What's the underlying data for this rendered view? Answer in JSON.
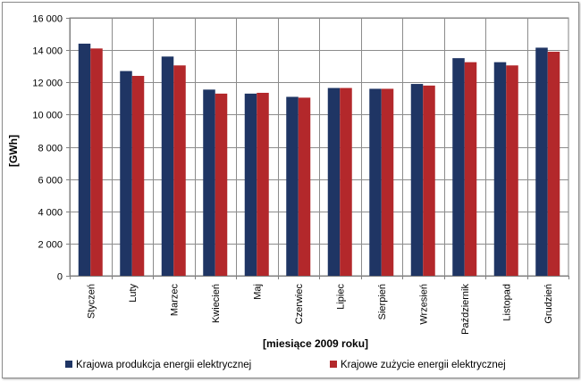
{
  "chart_data": {
    "type": "bar",
    "ylabel": "[GWh]",
    "xlabel": "[miesiące 2009  roku]",
    "ylim": [
      0,
      16000
    ],
    "yticks": [
      0,
      2000,
      4000,
      6000,
      8000,
      10000,
      12000,
      14000,
      16000
    ],
    "ytick_labels": [
      "0",
      "2 000",
      "4 000",
      "6 000",
      "8 000",
      "10 000",
      "12 000",
      "14 000",
      "16 000"
    ],
    "grid": true,
    "legend_placement": "bottom",
    "categories": [
      "Styczeń",
      "Luty",
      "Marzec",
      "Kwiecień",
      "Maj",
      "Czerwiec",
      "Lipiec",
      "Sierpień",
      "Wrzesień",
      "Październik",
      "Listopad",
      "Grudzień"
    ],
    "series": [
      {
        "name": "Krajowa produkcja energii elektrycznej",
        "color": "#1f3564",
        "values": [
          14400,
          12700,
          13600,
          11550,
          11300,
          11100,
          11650,
          11600,
          11900,
          13500,
          13250,
          14150
        ]
      },
      {
        "name": "Krajowe zużycie energii elektrycznej",
        "color": "#b3282b",
        "values": [
          14100,
          12400,
          13050,
          11300,
          11350,
          11050,
          11650,
          11600,
          11800,
          13250,
          13050,
          13900
        ]
      }
    ]
  }
}
